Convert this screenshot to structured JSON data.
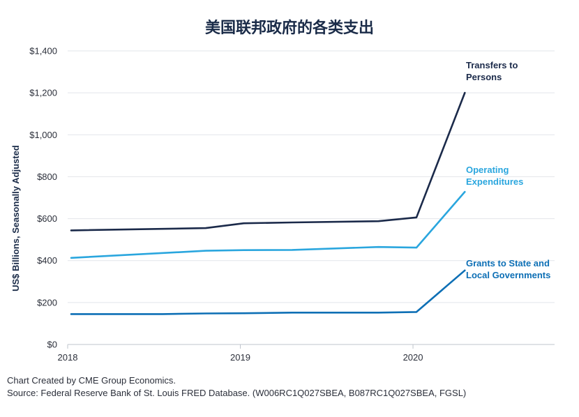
{
  "chart_data": {
    "type": "line",
    "title": "美国联邦政府的各类支出",
    "ylabel": "US$ Billions, Seasonally Adjusted",
    "xlabel": "",
    "ylim": [
      0,
      1400
    ],
    "yticks": [
      0,
      200,
      400,
      600,
      800,
      1000,
      1200,
      1400
    ],
    "ytick_labels": [
      "$0",
      "$200",
      "$400",
      "$600",
      "$800",
      "$1,000",
      "$1,200",
      "$1,400"
    ],
    "xlim": [
      2018.0,
      2020.82
    ],
    "xticks": [
      2018,
      2019,
      2020
    ],
    "xtick_labels": [
      "2018",
      "2019",
      "2020"
    ],
    "grid": "horizontal",
    "legend": "direct labels at right end of each line",
    "series": [
      {
        "name": "Transfers to Persons",
        "label_lines": [
          "Transfers to",
          "Persons"
        ],
        "color": "#1b2a4a",
        "x": [
          2018.02,
          2018.8,
          2019.02,
          2019.3,
          2019.8,
          2020.02,
          2020.3
        ],
        "values": [
          544,
          555,
          578,
          582,
          588,
          606,
          1200
        ]
      },
      {
        "name": "Operating Expenditures",
        "label_lines": [
          "Operating",
          "Expenditures"
        ],
        "color": "#2aa6de",
        "x": [
          2018.02,
          2018.8,
          2019.02,
          2019.3,
          2019.8,
          2020.02,
          2020.3
        ],
        "values": [
          413,
          447,
          450,
          451,
          465,
          462,
          728
        ]
      },
      {
        "name": "Grants to State and Local Governments",
        "label_lines": [
          "Grants to State and",
          "Local Governments"
        ],
        "color": "#0d6fb5",
        "x": [
          2018.02,
          2018.55,
          2018.8,
          2019.02,
          2019.3,
          2019.8,
          2020.02,
          2020.3
        ],
        "values": [
          145,
          145,
          148,
          149,
          152,
          152,
          155,
          353
        ]
      }
    ]
  },
  "footer": {
    "line1": "Chart Created by CME Group Economics.",
    "line2": "Source:  Federal Reserve Bank of St. Louis FRED Database. (W006RC1Q027SBEA, B087RC1Q027SBEA, FGSL)"
  }
}
